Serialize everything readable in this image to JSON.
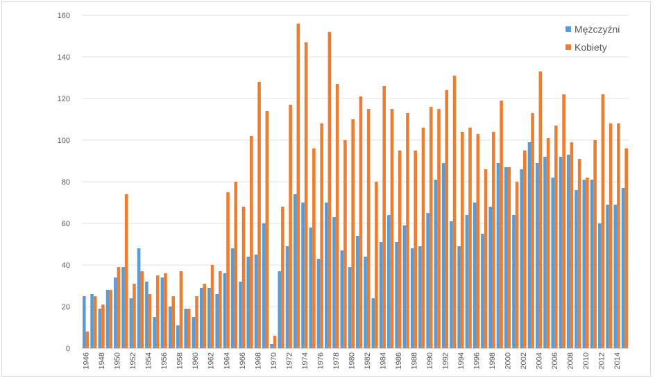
{
  "chart_data": {
    "type": "bar",
    "title": "",
    "xlabel": "",
    "ylabel": "",
    "ylim": [
      0,
      160
    ],
    "yticks": [
      0,
      20,
      40,
      60,
      80,
      100,
      120,
      140,
      160
    ],
    "grid": true,
    "legend_position": "top-right",
    "categories": [
      1946,
      1947,
      1948,
      1949,
      1950,
      1951,
      1952,
      1953,
      1954,
      1955,
      1956,
      1957,
      1958,
      1959,
      1960,
      1961,
      1962,
      1963,
      1964,
      1965,
      1966,
      1967,
      1968,
      1969,
      1970,
      1971,
      1972,
      1973,
      1974,
      1975,
      1976,
      1977,
      1978,
      1979,
      1980,
      1981,
      1982,
      1983,
      1984,
      1985,
      1986,
      1987,
      1988,
      1989,
      1990,
      1991,
      1992,
      1993,
      1994,
      1995,
      1996,
      1997,
      1998,
      1999,
      2000,
      2001,
      2002,
      2003,
      2004,
      2005,
      2006,
      2007,
      2008,
      2009,
      2010,
      2011,
      2012,
      2013,
      2014,
      2015
    ],
    "series": [
      {
        "name": "Mężczyźni",
        "color": "#5b9bd5",
        "values": [
          25,
          26,
          19,
          28,
          34,
          39,
          24,
          48,
          32,
          15,
          34,
          20,
          11,
          19,
          15,
          29,
          29,
          26,
          36,
          48,
          32,
          44,
          45,
          60,
          2,
          37,
          49,
          74,
          70,
          58,
          43,
          70,
          63,
          47,
          39,
          54,
          44,
          24,
          51,
          64,
          51,
          59,
          48,
          49,
          65,
          81,
          89,
          61,
          49,
          64,
          70,
          55,
          68,
          89,
          87,
          64,
          86,
          99,
          89,
          92,
          82,
          92,
          93,
          76,
          81,
          81,
          60,
          69,
          69,
          77
        ]
      },
      {
        "name": "Kobiety",
        "color": "#ed7d31",
        "values": [
          8,
          25,
          21,
          28,
          39,
          74,
          31,
          37,
          26,
          35,
          36,
          25,
          37,
          19,
          25,
          31,
          40,
          37,
          75,
          80,
          68,
          102,
          128,
          114,
          6,
          68,
          117,
          156,
          147,
          96,
          108,
          152,
          127,
          100,
          110,
          121,
          115,
          80,
          126,
          115,
          95,
          113,
          95,
          106,
          116,
          115,
          124,
          131,
          104,
          106,
          103,
          86,
          104,
          119,
          87,
          80,
          95,
          113,
          133,
          101,
          107,
          122,
          99,
          91,
          82,
          100,
          122,
          108,
          108,
          96
        ]
      }
    ]
  }
}
